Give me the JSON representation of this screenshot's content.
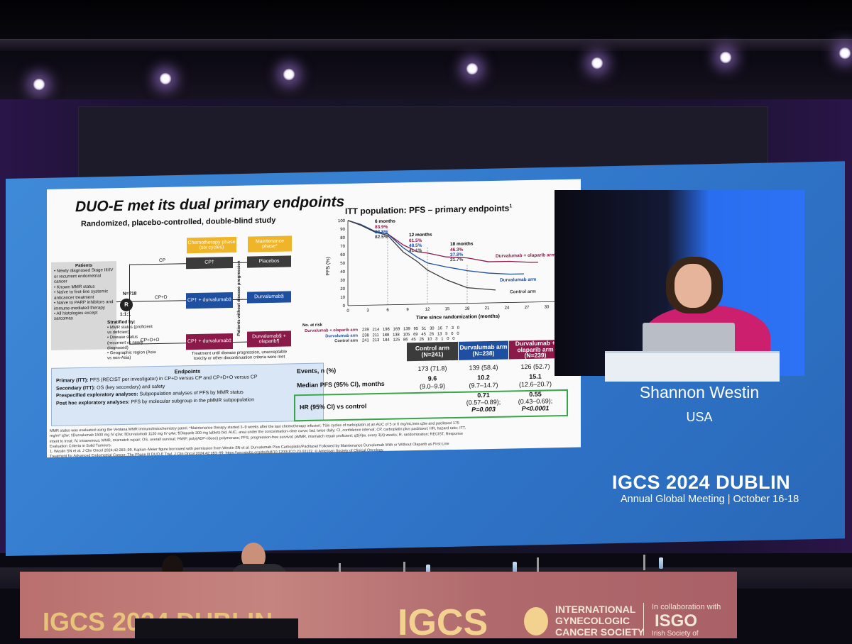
{
  "slide": {
    "title": "DUO-E met its dual primary endpoints",
    "subtitle": "Randomized, placebo-controlled, double-blind study",
    "chart_title": "ITT population: PFS – primary endpoints",
    "chart_title_sup": "1",
    "design": {
      "phase_chemo": "Chemotherapy phase (six cycles)",
      "phase_maint": "Maintenance phase*",
      "patients_label": "Patients",
      "patients_items": [
        "• Newly diagnosed Stage III/IV or recurrent endometrial cancer",
        "• Known MMR status",
        "• Naïve to first-line systemic anticancer treatment",
        "• Naïve to PARP inhibitors and immune-mediated therapy",
        "• All histologies except sarcomas"
      ],
      "n": "N=718",
      "r": "R",
      "ratio": "1:1:1",
      "stratified": "Stratified by:",
      "strat_items": [
        "• MMR status (proficient vs deficient)",
        "• Disease status (recurrent vs newly diagnosed)",
        "• Geographic region (Asia vs non-Asia)"
      ],
      "arm1_label": "CP",
      "arm2_label": "CP+D",
      "arm3_label": "CP+D+O",
      "arm1_chemo": "CP†",
      "arm2_chemo": "CP† + durvalumab‡",
      "arm3_chemo": "CP† + durvalumab‡",
      "arm1_maint": "Placebos",
      "arm2_maint": "Durvalumab§",
      "arm3_maint": "Durvalumab§ + olaparib¶",
      "vertical_note": "Patients without disease progression",
      "treatment_note": "Treatment until disease progression, unacceptable toxicity or other discontinuation criteria were met"
    },
    "endpoints": {
      "title": "Endpoints",
      "lines": [
        {
          "label": "Primary (ITT):",
          "text": " PFS (RECIST per investigator) in CP+D versus CP and CP+D+O versus CP"
        },
        {
          "label": "Secondary (ITT):",
          "text": " OS (key secondary) and safety"
        },
        {
          "label": "Prespecified exploratory analyses:",
          "text": " Subpopulation analyses of PFS by MMR status"
        },
        {
          "label": "Post hoc exploratory analyses:",
          "text": " PFS by molecular subgroup in the pMMR subpopulation"
        }
      ]
    },
    "footnotes": [
      "MMR status was evaluated using the Ventana MMR immunohistochemistry panel. *Maintenance therapy started 3–9 weeks after the last chemotherapy infusion; †Six cycles of carboplatin at an AUC of 5 or 6 mg/mL/min q3w and paclitaxel 175",
      "mg/m² q3w; ‡Durvalumab 1500 mg IV q3w; §Durvalumab 1120 mg IV q4w; ¶Olaparib 300 mg tablets bid. AUC, area under the concentration–time curve; bid, twice daily; CI, confidence interval; CP, carboplatin plus paclitaxel; HR, hazard ratio; ITT,",
      "intent to treat; IV, intravenous; MMR, mismatch repair; OS, overall survival; PARP, poly(ADP-ribose) polymerase; PFS, progression-free survival; pMMR, mismatch repair proficient; q3(4)w, every 3(4) weeks; R, randomization; RECIST, Response",
      "Evaluation Criteria in Solid Tumours.",
      "1. Westin SN et al. J Clin Oncol 2024;42:283–99. Kaplan–Meier figure borrowed with permission from Westin SN et al. Durvalumab Plus Carboplatin/Paclitaxel Followed by Maintenance Durvalumab With or Without Olaparib as First-Line",
      "Treatment for Advanced Endometrial Cancer: The Phase III DUO-E Trial. J Clin Oncol 2024;42:283–99; https://ascopubs.org/doi/full/10.1200/JCO.23.02132. © American Society of Clinical Oncology."
    ],
    "km": {
      "ylabel": "PFS (%)",
      "xlabel": "Time since randomization (months)",
      "y_ticks": [
        "100",
        "90",
        "80",
        "70",
        "60",
        "50",
        "40",
        "30",
        "20",
        "10",
        "0"
      ],
      "x_ticks": [
        "0",
        "3",
        "6",
        "9",
        "12",
        "15",
        "18",
        "21",
        "24",
        "27",
        "30",
        "33"
      ],
      "ann_6": {
        "title": "6 months",
        "v1": "83.9%",
        "v2": "83.8%",
        "v3": "82.5%"
      },
      "ann_12": {
        "title": "12 months",
        "v1": "61.5%",
        "v2": "48.5%",
        "v3": "41.1%"
      },
      "ann_18": {
        "title": "18 months",
        "v1": "46.3%",
        "v2": "37.8%",
        "v3": "21.7%"
      },
      "legend_olap": "Durvalumab + olaparib arm",
      "legend_durva": "Durvalumab arm",
      "legend_ctrl": "Control arm",
      "risk_title": "No. at risk",
      "risk_rows": [
        {
          "label": "Durvalumab + olaparib arm",
          "values": "239   214   198   169   139   95   51   30   16   7   3   0"
        },
        {
          "label": "Durvalumab arm",
          "values": "238   211   188   138   105   69   45   26   13   5   0   0"
        },
        {
          "label": "Control arm",
          "values": "241   213   184   125   86   45   26   10   3   1   0   0"
        }
      ],
      "colors": {
        "olap": "#8b1a4a",
        "durva": "#1f4fa0",
        "ctrl": "#3b3b3b"
      }
    },
    "table": {
      "col_ctrl": "Control arm (N=241)",
      "col_durva": "Durvalumab arm (N=238)",
      "col_olap": "Durvalumab + olaparib arm (N=239)",
      "events_label": "Events, n (%)",
      "events": [
        "173 (71.8)",
        "139 (58.4)",
        "126 (52.7)"
      ],
      "median_label": "Median PFS (95% CI), months",
      "median_main": [
        "9.6",
        "10.2",
        "15.1"
      ],
      "median_ci": [
        "(9.0–9.9)",
        "(9.7–14.7)",
        "(12.6–20.7)"
      ],
      "hr_label": "HR (95% CI) vs control",
      "hr_durva": [
        "0.71",
        "(0.57–0.89);",
        "P=0.003"
      ],
      "hr_olap": [
        "0.55",
        "(0.43–0.69);",
        "P<0.0001"
      ]
    }
  },
  "speaker": {
    "name": "Shannon Westin",
    "country": "USA"
  },
  "conference": {
    "title": "IGCS 2024 DUBLIN",
    "subtitle": "Annual Global Meeting | October 16-18"
  },
  "banner": {
    "igcs_left": "IGCS 2024 DUBLIN",
    "igcs": "IGCS",
    "line1": "INTERNATIONAL",
    "line2": "GYNECOLOGIC",
    "line3": "CANCER SOCIETY",
    "collab": "In collaboration with",
    "isgo": "ISGO",
    "irish": "Irish Society of"
  }
}
